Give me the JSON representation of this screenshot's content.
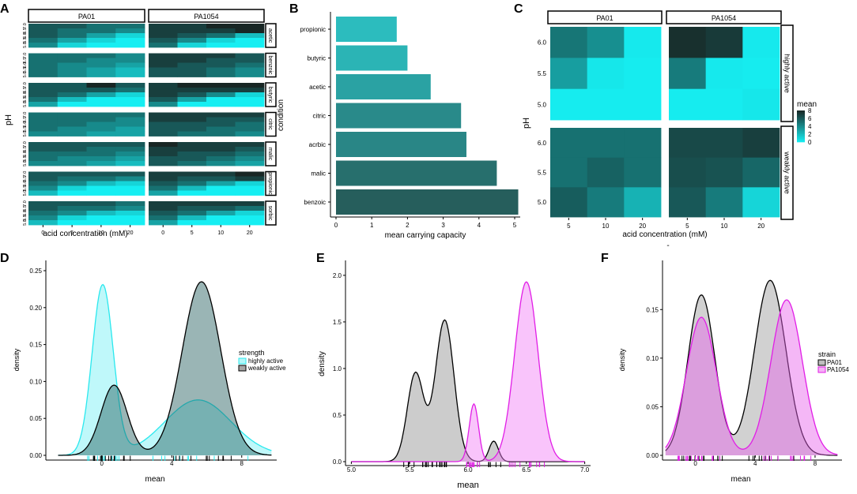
{
  "chart_data": {
    "panelA": {
      "type": "heatmap",
      "label": "A",
      "strips_top": [
        "PA01",
        "PA1054"
      ],
      "strips_right": [
        "acetic",
        "benzoic",
        "butyric",
        "citric",
        "malic",
        "propionic",
        "sorbic"
      ],
      "xticks": [
        "0",
        "5",
        "10",
        "20"
      ],
      "xlabel": "acid concentration (mM)",
      "ylabel": "pH",
      "yticks": [
        "7.0",
        "6.5",
        "6.0",
        "5.5",
        "5.0"
      ],
      "rows": [
        {
          "acid": "acetic",
          "PA01": [
            [
              6,
              6,
              5,
              5
            ],
            [
              6,
              5,
              5,
              4
            ],
            [
              6,
              5,
              3,
              1
            ],
            [
              5,
              3,
              1,
              0
            ],
            [
              4,
              1,
              0,
              0
            ]
          ],
          "PA1054": [
            [
              7,
              7,
              8,
              8
            ],
            [
              7,
              7,
              7,
              8
            ],
            [
              7,
              6,
              5,
              2
            ],
            [
              6,
              4,
              1,
              0
            ],
            [
              5,
              1,
              0,
              0
            ]
          ]
        },
        {
          "acid": "benzoic",
          "PA01": [
            [
              5,
              5,
              5,
              4
            ],
            [
              5,
              5,
              4,
              4
            ],
            [
              5,
              4,
              4,
              3
            ],
            [
              5,
              4,
              3,
              2
            ],
            [
              5,
              4,
              3,
              2
            ]
          ],
          "PA1054": [
            [
              7,
              7,
              7,
              6
            ],
            [
              7,
              7,
              6,
              6
            ],
            [
              7,
              6,
              6,
              5
            ],
            [
              6,
              6,
              5,
              4
            ],
            [
              6,
              6,
              5,
              4
            ]
          ]
        },
        {
          "acid": "butyric",
          "PA01": [
            [
              6,
              6,
              8,
              6
            ],
            [
              6,
              6,
              6,
              5
            ],
            [
              6,
              5,
              3,
              1
            ],
            [
              5,
              2,
              0,
              0
            ],
            [
              3,
              0,
              0,
              0
            ]
          ],
          "PA1054": [
            [
              7,
              8,
              8,
              8
            ],
            [
              7,
              7,
              7,
              7
            ],
            [
              7,
              6,
              4,
              1
            ],
            [
              6,
              3,
              0,
              0
            ],
            [
              4,
              0,
              0,
              0
            ]
          ]
        },
        {
          "acid": "citric",
          "PA01": [
            [
              5,
              5,
              5,
              5
            ],
            [
              5,
              5,
              5,
              4
            ],
            [
              5,
              5,
              4,
              4
            ],
            [
              5,
              4,
              4,
              3
            ],
            [
              4,
              4,
              3,
              3
            ]
          ],
          "PA1054": [
            [
              7,
              7,
              7,
              7
            ],
            [
              7,
              7,
              6,
              6
            ],
            [
              6,
              6,
              6,
              5
            ],
            [
              6,
              6,
              5,
              5
            ],
            [
              6,
              5,
              5,
              4
            ]
          ]
        },
        {
          "acid": "malic",
          "PA01": [
            [
              6,
              6,
              6,
              6
            ],
            [
              6,
              6,
              5,
              5
            ],
            [
              5,
              5,
              5,
              4
            ],
            [
              5,
              4,
              4,
              3
            ],
            [
              4,
              4,
              3,
              2
            ]
          ],
          "PA1054": [
            [
              8,
              7,
              7,
              7
            ],
            [
              7,
              7,
              7,
              6
            ],
            [
              7,
              6,
              6,
              5
            ],
            [
              6,
              6,
              5,
              4
            ],
            [
              6,
              5,
              4,
              3
            ]
          ]
        },
        {
          "acid": "propionic",
          "PA01": [
            [
              6,
              6,
              6,
              6
            ],
            [
              6,
              5,
              5,
              4
            ],
            [
              5,
              4,
              2,
              1
            ],
            [
              4,
              1,
              0,
              0
            ],
            [
              2,
              0,
              0,
              0
            ]
          ],
          "PA1054": [
            [
              7,
              7,
              7,
              8
            ],
            [
              7,
              6,
              6,
              7
            ],
            [
              6,
              5,
              3,
              1
            ],
            [
              5,
              2,
              0,
              0
            ],
            [
              3,
              0,
              0,
              0
            ]
          ]
        },
        {
          "acid": "sorbic",
          "PA01": [
            [
              6,
              6,
              6,
              5
            ],
            [
              6,
              5,
              5,
              4
            ],
            [
              5,
              4,
              2,
              1
            ],
            [
              4,
              1,
              0,
              0
            ],
            [
              2,
              0,
              0,
              0
            ]
          ],
          "PA1054": [
            [
              7,
              7,
              7,
              7
            ],
            [
              7,
              6,
              6,
              5
            ],
            [
              6,
              5,
              3,
              1
            ],
            [
              5,
              2,
              0,
              0
            ],
            [
              3,
              0,
              0,
              0
            ]
          ]
        }
      ]
    },
    "panelB": {
      "type": "bar",
      "label": "B",
      "orientation": "horizontal",
      "categories": [
        "propionic",
        "butyric",
        "acetic",
        "citric",
        "acrbic",
        "malic",
        "benzoic"
      ],
      "values": [
        1.7,
        2.0,
        2.65,
        3.5,
        3.65,
        4.5,
        5.1
      ],
      "xlabel": "mean carrying capacity",
      "ylabel": "condition",
      "xlim": [
        0,
        5.2
      ],
      "xticks": [
        "0",
        "1",
        "2",
        "3",
        "4",
        "5"
      ]
    },
    "panelC": {
      "type": "heatmap",
      "label": "C",
      "strips_top": [
        "PA01",
        "PA1054"
      ],
      "strips_right": [
        "highly active",
        "weakly active"
      ],
      "xticks": [
        "5",
        "10",
        "20"
      ],
      "yticks": [
        "6.0",
        "5.5",
        "5.0"
      ],
      "xlabel": "acid concentration (mM)",
      "ylabel": "pH",
      "below_xlabel": "-",
      "legend_title": "mean",
      "legend_ticks": [
        "8",
        "6",
        "4",
        "2",
        "0"
      ],
      "highly": {
        "PA01": [
          [
            4.8,
            3.8,
            0.2
          ],
          [
            3.2,
            0.3,
            0.1
          ],
          [
            0.1,
            0.1,
            0.1
          ]
        ],
        "PA1054": [
          [
            7.6,
            7.2,
            0.2
          ],
          [
            4.6,
            0.2,
            0.1
          ],
          [
            0.1,
            0.1,
            0.3
          ]
        ]
      },
      "weakly": {
        "PA01": [
          [
            5.0,
            5.0,
            5.0
          ],
          [
            5.0,
            5.6,
            5.0
          ],
          [
            5.8,
            4.6,
            2.4
          ]
        ],
        "PA1054": [
          [
            6.6,
            6.6,
            7.0
          ],
          [
            6.4,
            6.2,
            5.4
          ],
          [
            6.0,
            4.6,
            1.0
          ]
        ]
      }
    },
    "panelD": {
      "type": "area",
      "label": "D",
      "xlabel": "mean",
      "ylabel": "density",
      "xlim": [
        -3.2,
        10
      ],
      "ylim": [
        0,
        0.25
      ],
      "xticks": [
        "0",
        "4",
        "8"
      ],
      "yticks": [
        "0.00",
        "0.05",
        "0.10",
        "0.15",
        "0.20",
        "0.25"
      ],
      "legend_title": "strength",
      "series": [
        {
          "name": "highly active",
          "color": "#2ae8ee",
          "peaks": [
            [
              0.05,
              0.6,
              0.23
            ],
            [
              5.5,
              1.9,
              0.075
            ]
          ]
        },
        {
          "name": "weakly active",
          "color": "#000000",
          "peaks": [
            [
              0.7,
              0.75,
              0.095
            ],
            [
              5.7,
              1.1,
              0.235
            ]
          ]
        }
      ]
    },
    "panelE": {
      "type": "area",
      "label": "E",
      "xlabel": "mean",
      "ylabel": "density",
      "xlim": [
        4.95,
        7.05
      ],
      "ylim": [
        0,
        2.05
      ],
      "xticks": [
        "5.0",
        "5.5",
        "6.0",
        "6.5",
        "7.0"
      ],
      "yticks": [
        "0.0",
        "0.5",
        "1.0",
        "1.5",
        "2.0"
      ],
      "series": [
        {
          "name": "grey",
          "color": "#000000",
          "peaks": [
            [
              5.55,
              0.07,
              0.95
            ],
            [
              5.8,
              0.08,
              1.52
            ],
            [
              6.22,
              0.04,
              0.22
            ]
          ]
        },
        {
          "name": "magenta",
          "color": "#e11ee6",
          "peaks": [
            [
              6.05,
              0.04,
              0.62
            ],
            [
              6.5,
              0.1,
              1.93
            ]
          ]
        }
      ]
    },
    "panelF": {
      "type": "area",
      "label": "F",
      "xlabel": "mean",
      "ylabel": "density",
      "xlim": [
        -2.2,
        9.8
      ],
      "ylim": [
        0,
        0.19
      ],
      "xticks": [
        "0",
        "4",
        "8"
      ],
      "yticks": [
        "0.00",
        "0.05",
        "0.10",
        "0.15"
      ],
      "legend_title": "strain",
      "series": [
        {
          "name": "PA01",
          "color": "#000000",
          "peaks": [
            [
              0.4,
              0.9,
              0.165
            ],
            [
              5.0,
              1.05,
              0.18
            ]
          ]
        },
        {
          "name": "PA1054",
          "color": "#e11ee6",
          "peaks": [
            [
              0.4,
              1.0,
              0.142
            ],
            [
              6.1,
              1.05,
              0.16
            ]
          ]
        }
      ]
    }
  }
}
